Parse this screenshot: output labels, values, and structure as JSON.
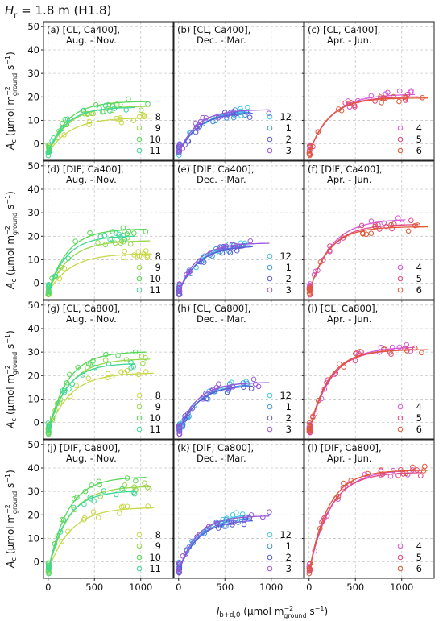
{
  "figure": {
    "header_symbol": "H",
    "header_sub": "r",
    "header_rest": " = 1.8 m (H1.8)",
    "ylabel_main": "A",
    "ylabel_sub": "c",
    "ylabel_unit_open": " (μmol m",
    "ylabel_unit_sup": "−2",
    "ylabel_unit_sub": "ground",
    "ylabel_unit_tail": " s",
    "ylabel_unit_sup2": "−1",
    "ylabel_unit_close": ")",
    "xlabel_main": "I",
    "xlabel_sub": "b+d,0",
    "xlabel_unit_open": " (μmol m",
    "xlabel_unit_sup": "−2",
    "xlabel_unit_sub": "ground",
    "xlabel_unit_tail": " s",
    "xlabel_unit_sup2": "−1",
    "xlabel_unit_close": ")"
  },
  "colors": {
    "m8": "#c8d84a",
    "m9": "#98d848",
    "m10": "#58d858",
    "m11": "#40d898",
    "m12": "#40c8e0",
    "m1": "#4098e0",
    "m2": "#5858d8",
    "m3": "#9858d8",
    "m4": "#d858d8",
    "m5": "#e04880",
    "m6": "#e05838"
  },
  "chart_data": [
    {
      "id": "a",
      "title1": "(a) [CL,  Ca400],",
      "title2": "Aug. - Nov.",
      "type": "scatter",
      "xlim": [
        -50,
        1350
      ],
      "ylim": [
        -7,
        52
      ],
      "xticks": [
        0,
        500,
        1000
      ],
      "yticks": [
        0,
        10,
        20,
        30,
        40,
        50
      ],
      "legend": [
        "8",
        "9",
        "10",
        "11"
      ],
      "series": [
        {
          "name": "8",
          "color": "#c8d84a",
          "amax": 11,
          "xmax": 1120
        },
        {
          "name": "9",
          "color": "#98d848",
          "amax": 16,
          "xmax": 1100
        },
        {
          "name": "10",
          "color": "#58d858",
          "amax": 18,
          "xmax": 1080
        },
        {
          "name": "11",
          "color": "#40d898",
          "amax": 15.5,
          "xmax": 950
        }
      ]
    },
    {
      "id": "b",
      "title1": "(b) [CL,  Ca400],",
      "title2": "Dec. - Mar.",
      "type": "scatter",
      "xlim": [
        -50,
        1350
      ],
      "ylim": [
        -7,
        52
      ],
      "xticks": [
        0,
        500,
        1000
      ],
      "yticks": [
        0,
        10,
        20,
        30,
        40,
        50
      ],
      "legend": [
        "12",
        "1",
        "2",
        "3"
      ],
      "series": [
        {
          "name": "12",
          "color": "#40c8e0",
          "amax": 14,
          "xmax": 750
        },
        {
          "name": "1",
          "color": "#4098e0",
          "amax": 13.5,
          "xmax": 780
        },
        {
          "name": "2",
          "color": "#5858d8",
          "amax": 13,
          "xmax": 800
        },
        {
          "name": "3",
          "color": "#9858d8",
          "amax": 14.5,
          "xmax": 980
        }
      ]
    },
    {
      "id": "c",
      "title1": "(c) [CL,  Ca400],",
      "title2": "Apr. - Jun.",
      "type": "scatter",
      "xlim": [
        -50,
        1350
      ],
      "ylim": [
        -7,
        52
      ],
      "xticks": [
        0,
        500,
        1000
      ],
      "yticks": [
        0,
        10,
        20,
        30,
        40,
        50
      ],
      "legend": [
        "4",
        "5",
        "6"
      ],
      "series": [
        {
          "name": "4",
          "color": "#d858d8",
          "amax": 21,
          "xmax": 1150
        },
        {
          "name": "5",
          "color": "#e04880",
          "amax": 20,
          "xmax": 1180
        },
        {
          "name": "6",
          "color": "#e05838",
          "amax": 19.5,
          "xmax": 1280
        }
      ]
    },
    {
      "id": "d",
      "title1": "(d) [DIF, Ca400],",
      "title2": "Aug. - Nov.",
      "type": "scatter",
      "xlim": [
        -50,
        1350
      ],
      "ylim": [
        -7,
        52
      ],
      "xticks": [
        0,
        500,
        1000
      ],
      "yticks": [
        0,
        10,
        20,
        30,
        40,
        50
      ],
      "legend": [
        "8",
        "9",
        "10",
        "11"
      ],
      "series": [
        {
          "name": "8",
          "color": "#c8d84a",
          "amax": 12.5,
          "xmax": 1120
        },
        {
          "name": "9",
          "color": "#98d848",
          "amax": 18,
          "xmax": 1100
        },
        {
          "name": "10",
          "color": "#58d858",
          "amax": 23,
          "xmax": 1060
        },
        {
          "name": "11",
          "color": "#40d898",
          "amax": 20,
          "xmax": 950
        }
      ]
    },
    {
      "id": "e",
      "title1": "(e) [DIF, Ca400],",
      "title2": "Dec. - Mar.",
      "type": "scatter",
      "xlim": [
        -50,
        1350
      ],
      "ylim": [
        -7,
        52
      ],
      "xticks": [
        0,
        500,
        1000
      ],
      "yticks": [
        0,
        10,
        20,
        30,
        40,
        50
      ],
      "legend": [
        "12",
        "1",
        "2",
        "3"
      ],
      "series": [
        {
          "name": "12",
          "color": "#40c8e0",
          "amax": 17,
          "xmax": 760
        },
        {
          "name": "1",
          "color": "#4098e0",
          "amax": 16,
          "xmax": 780
        },
        {
          "name": "2",
          "color": "#5858d8",
          "amax": 15.5,
          "xmax": 800
        },
        {
          "name": "3",
          "color": "#9858d8",
          "amax": 17,
          "xmax": 980
        }
      ]
    },
    {
      "id": "f",
      "title1": "(f) [DIF, Ca400],",
      "title2": "Apr. - Jun.",
      "type": "scatter",
      "xlim": [
        -50,
        1350
      ],
      "ylim": [
        -7,
        52
      ],
      "xticks": [
        0,
        500,
        1000
      ],
      "yticks": [
        0,
        10,
        20,
        30,
        40,
        50
      ],
      "legend": [
        "4",
        "5",
        "6"
      ],
      "series": [
        {
          "name": "4",
          "color": "#d858d8",
          "amax": 27,
          "xmax": 1050
        },
        {
          "name": "5",
          "color": "#e04880",
          "amax": 25,
          "xmax": 1180
        },
        {
          "name": "6",
          "color": "#e05838",
          "amax": 24,
          "xmax": 1280
        }
      ]
    },
    {
      "id": "g",
      "title1": "(g) [CL,  Ca800],",
      "title2": "Aug. - Nov.",
      "type": "scatter",
      "xlim": [
        -50,
        1350
      ],
      "ylim": [
        -7,
        52
      ],
      "xticks": [
        0,
        500,
        1000
      ],
      "yticks": [
        0,
        10,
        20,
        30,
        40,
        50
      ],
      "legend": [
        "8",
        "9",
        "10",
        "11"
      ],
      "series": [
        {
          "name": "8",
          "color": "#c8d84a",
          "amax": 21,
          "xmax": 1140
        },
        {
          "name": "9",
          "color": "#98d848",
          "amax": 27,
          "xmax": 1100
        },
        {
          "name": "10",
          "color": "#58d858",
          "amax": 30,
          "xmax": 1060
        },
        {
          "name": "11",
          "color": "#40d898",
          "amax": 25,
          "xmax": 950
        }
      ]
    },
    {
      "id": "h",
      "title1": "(h) [CL,  Ca800],",
      "title2": "Dec. - Mar.",
      "type": "scatter",
      "xlim": [
        -50,
        1350
      ],
      "ylim": [
        -7,
        52
      ],
      "xticks": [
        0,
        500,
        1000
      ],
      "yticks": [
        0,
        10,
        20,
        30,
        40,
        50
      ],
      "legend": [
        "12",
        "1",
        "2",
        "3"
      ],
      "series": [
        {
          "name": "12",
          "color": "#40c8e0",
          "amax": 17,
          "xmax": 760
        },
        {
          "name": "1",
          "color": "#4098e0",
          "amax": 16,
          "xmax": 780
        },
        {
          "name": "2",
          "color": "#5858d8",
          "amax": 15.5,
          "xmax": 800
        },
        {
          "name": "3",
          "color": "#9858d8",
          "amax": 17,
          "xmax": 980
        }
      ]
    },
    {
      "id": "i",
      "title1": "(i) [CL,  Ca800],",
      "title2": "Apr. - Jun.",
      "type": "scatter",
      "xlim": [
        -50,
        1350
      ],
      "ylim": [
        -7,
        52
      ],
      "xticks": [
        0,
        500,
        1000
      ],
      "yticks": [
        0,
        10,
        20,
        30,
        40,
        50
      ],
      "legend": [
        "4",
        "5",
        "6"
      ],
      "series": [
        {
          "name": "4",
          "color": "#d858d8",
          "amax": 32,
          "xmax": 1150
        },
        {
          "name": "5",
          "color": "#e04880",
          "amax": 31,
          "xmax": 1180
        },
        {
          "name": "6",
          "color": "#e05838",
          "amax": 31,
          "xmax": 1280
        }
      ]
    },
    {
      "id": "j",
      "title1": "(j) [DIF, Ca800],",
      "title2": "Aug. - Nov.",
      "type": "scatter",
      "xlim": [
        -50,
        1350
      ],
      "ylim": [
        -7,
        52
      ],
      "xticks": [
        0,
        500,
        1000
      ],
      "yticks": [
        0,
        10,
        20,
        30,
        40,
        50
      ],
      "legend": [
        "8",
        "9",
        "10",
        "11"
      ],
      "series": [
        {
          "name": "8",
          "color": "#c8d84a",
          "amax": 23,
          "xmax": 1140
        },
        {
          "name": "9",
          "color": "#98d848",
          "amax": 32,
          "xmax": 1100
        },
        {
          "name": "10",
          "color": "#58d858",
          "amax": 36,
          "xmax": 1060
        },
        {
          "name": "11",
          "color": "#40d898",
          "amax": 30,
          "xmax": 950
        }
      ]
    },
    {
      "id": "k",
      "title1": "(k) [DIF, Ca800],",
      "title2": "Dec. - Mar.",
      "type": "scatter",
      "xlim": [
        -50,
        1350
      ],
      "ylim": [
        -7,
        52
      ],
      "xticks": [
        0,
        500,
        1000
      ],
      "yticks": [
        0,
        10,
        20,
        30,
        40,
        50
      ],
      "legend": [
        "12",
        "1",
        "2",
        "3"
      ],
      "series": [
        {
          "name": "12",
          "color": "#40c8e0",
          "amax": 20,
          "xmax": 760
        },
        {
          "name": "1",
          "color": "#4098e0",
          "amax": 18.5,
          "xmax": 780
        },
        {
          "name": "2",
          "color": "#5858d8",
          "amax": 17.5,
          "xmax": 800
        },
        {
          "name": "3",
          "color": "#9858d8",
          "amax": 19.5,
          "xmax": 980
        }
      ]
    },
    {
      "id": "l",
      "title1": "(l) [DIF, Ca800],",
      "title2": "Apr. - Jun.",
      "type": "scatter",
      "xlim": [
        -50,
        1350
      ],
      "ylim": [
        -7,
        52
      ],
      "xticks": [
        0,
        500,
        1000
      ],
      "yticks": [
        0,
        10,
        20,
        30,
        40,
        50
      ],
      "legend": [
        "4",
        "5",
        "6"
      ],
      "series": [
        {
          "name": "4",
          "color": "#d858d8",
          "amax": 39,
          "xmax": 1200
        },
        {
          "name": "5",
          "color": "#e04880",
          "amax": 38,
          "xmax": 1230
        },
        {
          "name": "6",
          "color": "#e05838",
          "amax": 39,
          "xmax": 1280
        }
      ]
    }
  ]
}
